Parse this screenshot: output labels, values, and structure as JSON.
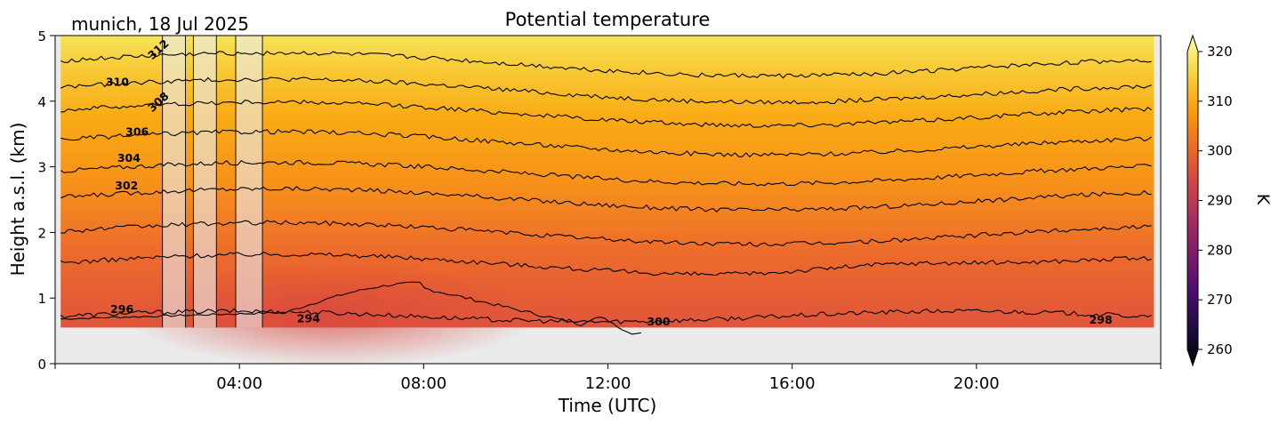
{
  "chart_data": {
    "type": "heatmap",
    "title": "Potential temperature",
    "subtitle": "munich, 18 Jul 2025",
    "xlabel": "Time (UTC)",
    "ylabel": "Height a.s.l. (km)",
    "xlim_hours": [
      0,
      24
    ],
    "ylim_km": [
      0,
      5
    ],
    "x_ticks": [
      {
        "h": 0,
        "label": ""
      },
      {
        "h": 4,
        "label": "04:00"
      },
      {
        "h": 8,
        "label": "08:00"
      },
      {
        "h": 12,
        "label": "12:00"
      },
      {
        "h": 16,
        "label": "16:00"
      },
      {
        "h": 20,
        "label": "20:00"
      },
      {
        "h": 24,
        "label": ""
      }
    ],
    "y_ticks": [
      {
        "v": 0,
        "label": "0"
      },
      {
        "v": 1,
        "label": "1"
      },
      {
        "v": 2,
        "label": "2"
      },
      {
        "v": 3,
        "label": "3"
      },
      {
        "v": 4,
        "label": "4"
      },
      {
        "v": 5,
        "label": "5"
      }
    ],
    "data_bottom_km": 0.55,
    "no_data_bands_hours": [
      [
        2.33,
        2.83
      ],
      [
        3.0,
        3.5
      ],
      [
        3.92,
        4.5
      ]
    ],
    "colorbar": {
      "label": "K",
      "range": [
        260,
        320
      ],
      "ticks": [
        {
          "v": 260,
          "label": "260"
        },
        {
          "v": 270,
          "label": "270"
        },
        {
          "v": 280,
          "label": "280"
        },
        {
          "v": 290,
          "label": "290"
        },
        {
          "v": 300,
          "label": "300"
        },
        {
          "v": 310,
          "label": "310"
        },
        {
          "v": 320,
          "label": "320"
        }
      ],
      "colors": [
        "#000004",
        "#1b0c41",
        "#4a0c6b",
        "#781c6d",
        "#a52c60",
        "#cf4446",
        "#ed6925",
        "#fb9b06",
        "#f7d13d",
        "#fcffa4"
      ]
    },
    "contour_levels": [
      294,
      296,
      298,
      300,
      302,
      304,
      306,
      308,
      310,
      312
    ],
    "contour_labels": [
      {
        "text": "296",
        "h": 1.45,
        "km": 0.82,
        "rot": 0
      },
      {
        "text": "294",
        "h": 5.5,
        "km": 0.68,
        "rot": 0
      },
      {
        "text": "300",
        "h": 13.1,
        "km": 0.63,
        "rot": 0
      },
      {
        "text": "298",
        "h": 22.7,
        "km": 0.66,
        "rot": 0
      },
      {
        "text": "302",
        "h": 1.55,
        "km": 2.7,
        "rot": 0
      },
      {
        "text": "304",
        "h": 1.6,
        "km": 3.12,
        "rot": 0
      },
      {
        "text": "306",
        "h": 1.78,
        "km": 3.52,
        "rot": 0
      },
      {
        "text": "308",
        "h": 2.25,
        "km": 3.98,
        "rot": -42
      },
      {
        "text": "310",
        "h": 1.35,
        "km": 4.28,
        "rot": 0
      },
      {
        "text": "312",
        "h": 2.25,
        "km": 4.78,
        "rot": -42
      }
    ]
  }
}
